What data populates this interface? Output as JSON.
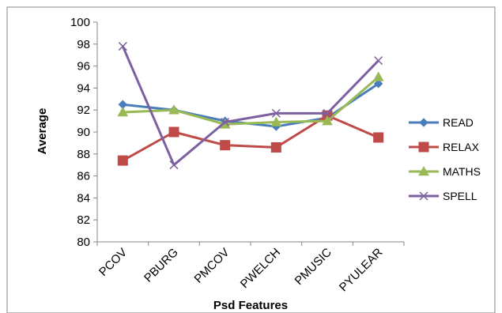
{
  "chart_data": {
    "type": "line",
    "title": "",
    "xlabel": "Psd Features",
    "ylabel": "Average",
    "categories": [
      "PCOV",
      "PBURG",
      "PMCOV",
      "PWELCH",
      "PMUSIC",
      "PYULEAR"
    ],
    "ylim": [
      80,
      100
    ],
    "yticks": [
      80,
      82,
      84,
      86,
      88,
      90,
      92,
      94,
      96,
      98,
      100
    ],
    "grid": false,
    "legend_position": "right",
    "series": [
      {
        "name": "READ",
        "color": "#4a7ebb",
        "marker": "diamond",
        "values": [
          92.5,
          92.0,
          91.0,
          90.5,
          91.3,
          94.4
        ]
      },
      {
        "name": "RELAX",
        "color": "#be4b48",
        "marker": "square",
        "values": [
          87.4,
          90.0,
          88.8,
          88.6,
          91.5,
          89.5
        ]
      },
      {
        "name": "MATHS",
        "color": "#98b954",
        "marker": "triangle",
        "values": [
          91.8,
          92.0,
          90.7,
          90.9,
          91.0,
          95.0
        ]
      },
      {
        "name": "SPELL",
        "color": "#7d60a0",
        "marker": "x",
        "values": [
          97.8,
          87.0,
          90.9,
          91.7,
          91.7,
          96.5
        ]
      }
    ]
  }
}
